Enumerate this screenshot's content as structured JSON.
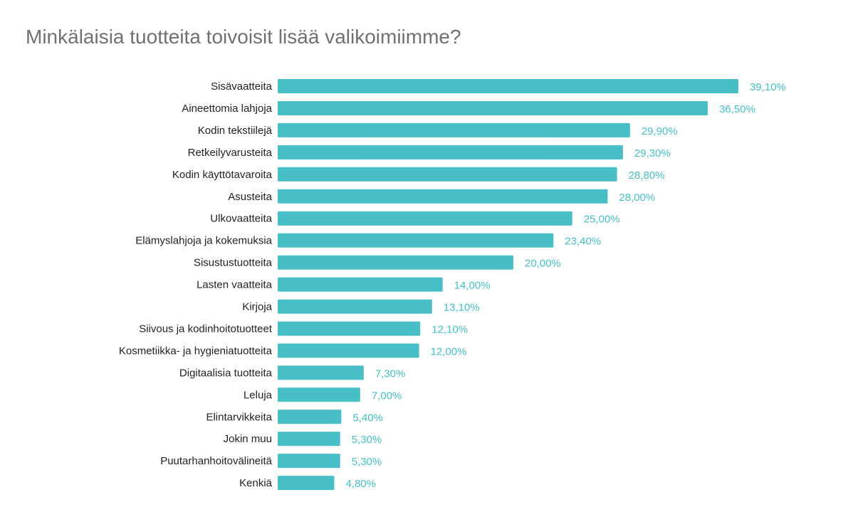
{
  "chart_data": {
    "type": "bar",
    "orientation": "horizontal",
    "title": "Minkälaisia tuotteita toivoisit lisää valikoimiimme?",
    "xlabel": "",
    "ylabel": "",
    "unit": "%",
    "color": "#48BEC7",
    "grid": false,
    "legend": "none",
    "categories": [
      "Sisävaatteita",
      "Aineettomia lahjoja",
      "Kodin tekstiilejä",
      "Retkeilyvarusteita",
      "Kodin käyttötavaroita",
      "Asusteita",
      "Ulkovaatteita",
      "Elämyslahjoja ja kokemuksia",
      "Sisustustuotteita",
      "Lasten vaatteita",
      "Kirjoja",
      "Siivous ja kodinhoitotuotteet",
      "Kosmetiikka- ja hygieniatuotteita",
      "Digitaalisia tuotteita",
      "Leluja",
      "Elintarvikkeita",
      "Jokin muu",
      "Puutarhanhoitovälineitä",
      "Kenkiä"
    ],
    "values": [
      39.1,
      36.5,
      29.9,
      29.3,
      28.8,
      28.0,
      25.0,
      23.4,
      20.0,
      14.0,
      13.1,
      12.1,
      12.0,
      7.3,
      7.0,
      5.4,
      5.3,
      5.3,
      4.8
    ],
    "value_labels": [
      "39,10%",
      "36,50%",
      "29,90%",
      "29,30%",
      "28,80%",
      "28,00%",
      "25,00%",
      "23,40%",
      "20,00%",
      "14,00%",
      "13,10%",
      "12,10%",
      "12,00%",
      "7,30%",
      "7,00%",
      "5,40%",
      "5,30%",
      "5,30%",
      "4,80%"
    ]
  }
}
